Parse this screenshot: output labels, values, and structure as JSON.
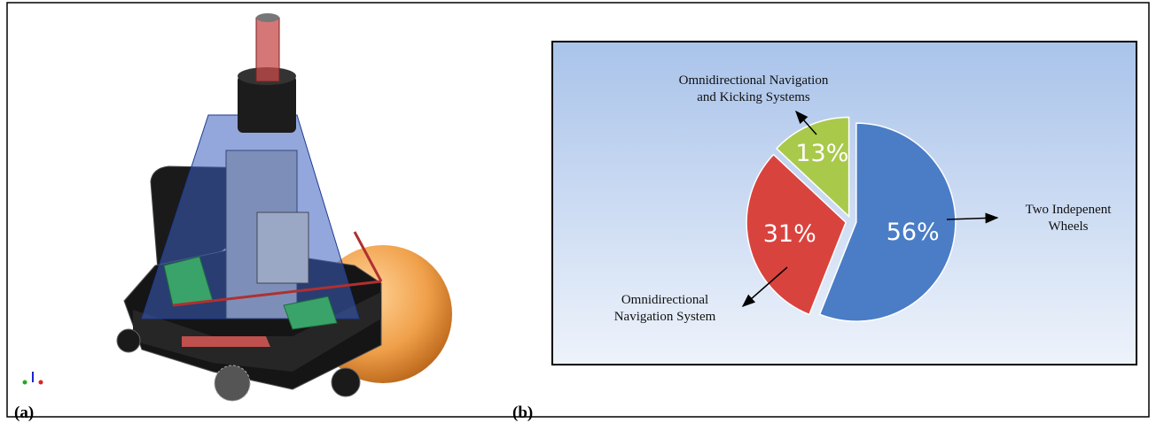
{
  "panels": {
    "a": "(a)",
    "b": "(b)"
  },
  "chart_data": {
    "type": "pie",
    "categories": [
      "Two Indepenent\nWheels",
      "Omnidirectional\nNavigation  System",
      "Omnidirectional Navigation\nand Kicking Systems"
    ],
    "values": [
      56,
      31,
      13
    ],
    "value_labels": [
      "56%",
      "31%",
      "13%"
    ],
    "colors": [
      "#4a7dc6",
      "#d9433e",
      "#a9c94b"
    ]
  }
}
